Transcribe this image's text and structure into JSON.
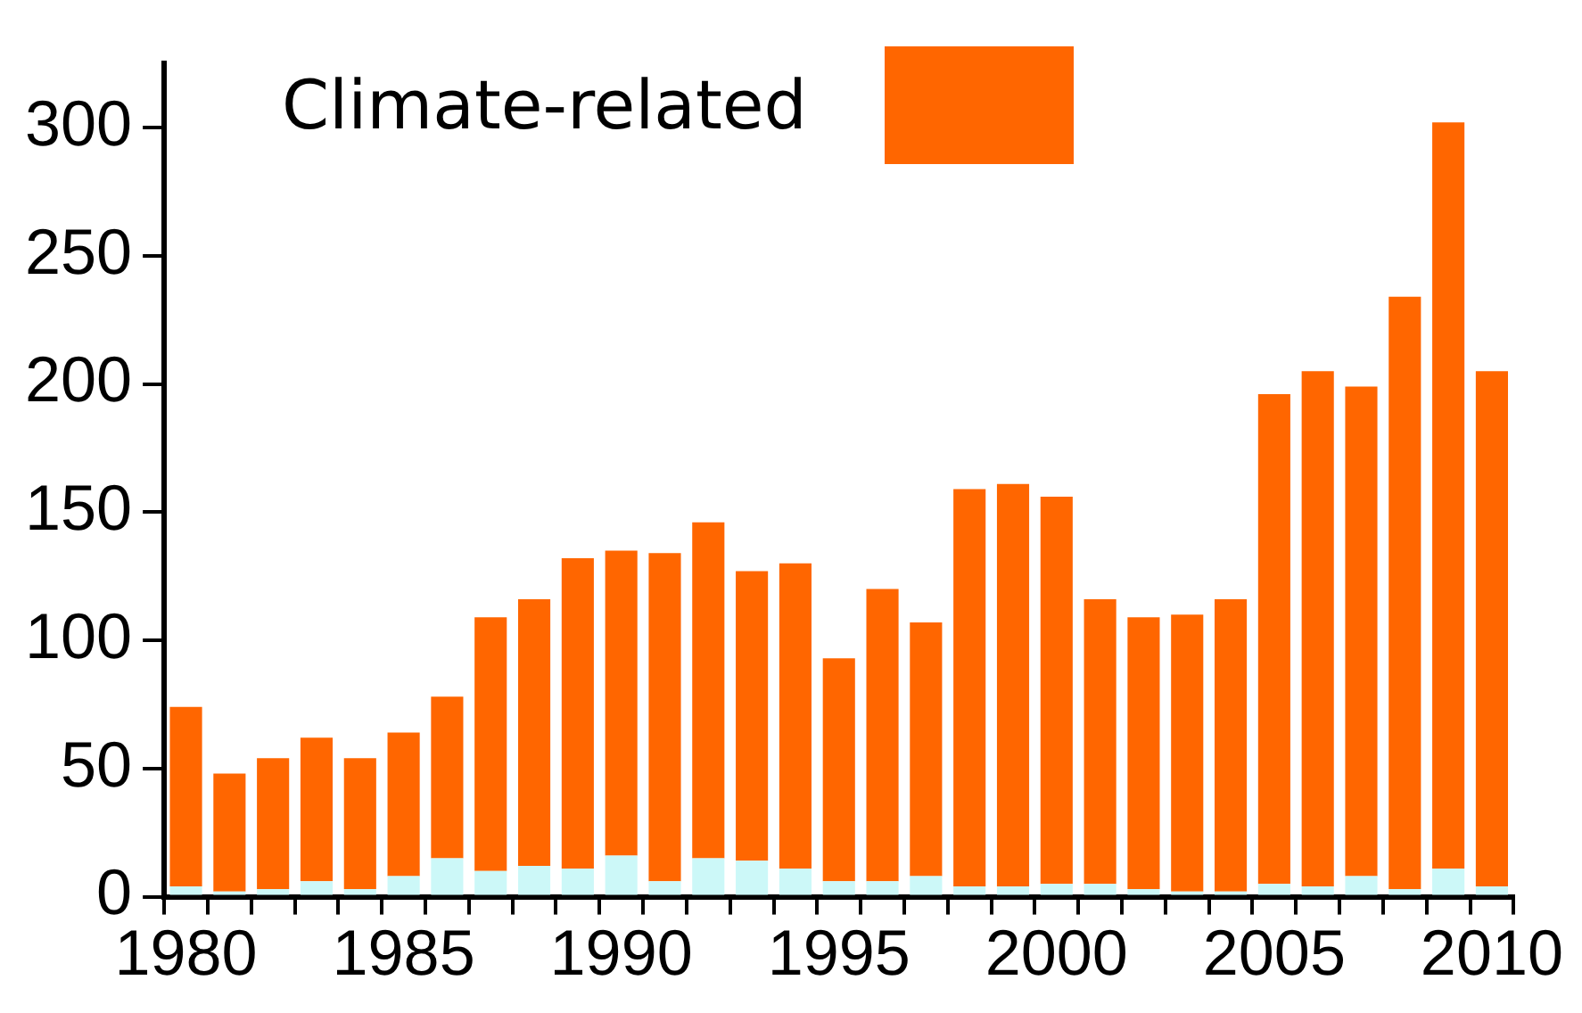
{
  "chart_data": {
    "type": "bar",
    "stacked": true,
    "legend": "top left",
    "grid": false,
    "categories": [
      "1980",
      null,
      null,
      null,
      null,
      "1985",
      null,
      null,
      null,
      null,
      "1990",
      null,
      null,
      null,
      null,
      "1995",
      null,
      null,
      null,
      null,
      "2000",
      null,
      null,
      null,
      null,
      "2005",
      null,
      null,
      null,
      null,
      "2010"
    ],
    "series": [
      {
        "color": "#ccf8f8",
        "values": [
          4,
          2,
          3,
          6,
          3,
          8,
          15,
          10,
          12,
          11,
          16,
          6,
          15,
          14,
          11,
          6,
          6,
          8,
          4,
          4,
          5,
          5,
          3,
          2,
          2,
          5,
          4,
          8,
          3,
          11,
          4
        ]
      },
      {
        "name": "Climate-related",
        "color": "#ff6600",
        "values": [
          70,
          46,
          51,
          56,
          51,
          56,
          63,
          99,
          104,
          121,
          119,
          128,
          131,
          113,
          119,
          87,
          114,
          99,
          155,
          157,
          151,
          111,
          106,
          108,
          114,
          191,
          201,
          191,
          231,
          291,
          201
        ]
      }
    ],
    "ylim": [
      0,
      325
    ],
    "yticks": [
      0,
      50,
      100,
      150,
      200,
      250,
      300
    ]
  }
}
